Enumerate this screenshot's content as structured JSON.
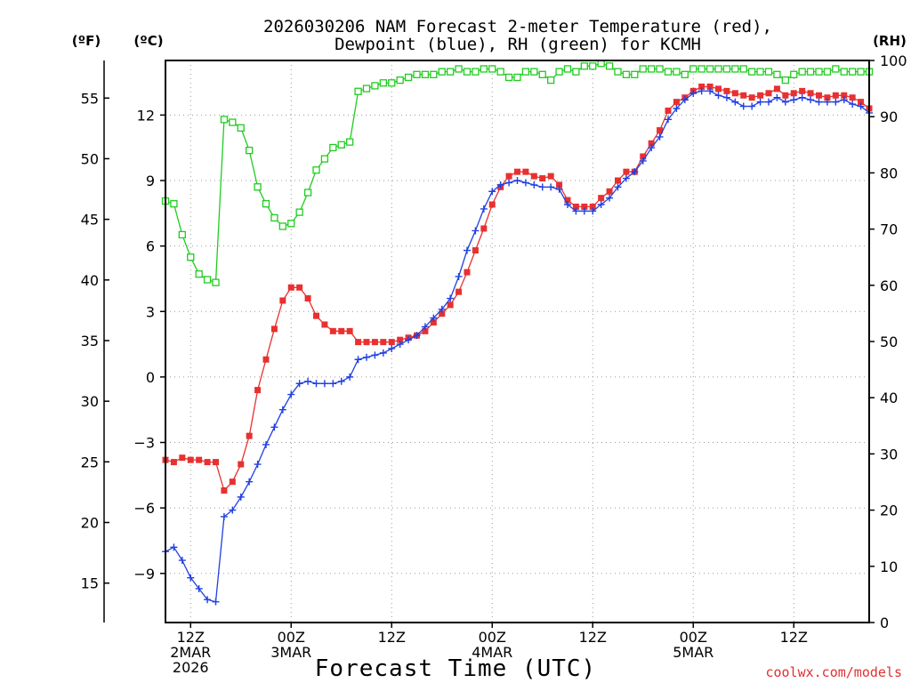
{
  "chart_data": {
    "type": "line",
    "title": "2026030206 NAM Forecast 2-meter Temperature (red),",
    "subtitle": "Dewpoint (blue), RH (green) for KCMH",
    "xlabel": "Forecast Time (UTC)",
    "credit": "coolwx.com/models",
    "units": {
      "fahrenheit": "(ºF)",
      "celsius": "(ºC)",
      "rh": "(RH)"
    },
    "x_unit": "forecast hour from 2026-03-02 06Z",
    "xlim": [
      0,
      84
    ],
    "x_ticks": [
      {
        "x": 3,
        "lines": [
          "12Z",
          "2MAR",
          "2026"
        ]
      },
      {
        "x": 15,
        "lines": [
          "00Z",
          "3MAR"
        ]
      },
      {
        "x": 27,
        "lines": [
          "12Z"
        ]
      },
      {
        "x": 39,
        "lines": [
          "00Z",
          "4MAR"
        ]
      },
      {
        "x": 51,
        "lines": [
          "12Z"
        ]
      },
      {
        "x": 63,
        "lines": [
          "00Z",
          "5MAR"
        ]
      },
      {
        "x": 75,
        "lines": [
          "12Z"
        ]
      }
    ],
    "celsius_axis": {
      "ylim": [
        -11.25,
        14.5
      ],
      "ticks": [
        "12",
        "9",
        "6",
        "3",
        "0",
        "−3",
        "−6",
        "−9"
      ],
      "tick_values": [
        12,
        9,
        6,
        3,
        0,
        -3,
        -6,
        -9
      ]
    },
    "fahrenheit_axis": {
      "ticks": [
        "55",
        "50",
        "45",
        "40",
        "35",
        "30",
        "25",
        "20",
        "15"
      ],
      "tick_values": [
        55,
        50,
        45,
        40,
        35,
        30,
        25,
        20,
        15
      ]
    },
    "rh_axis": {
      "ylim": [
        0,
        100
      ],
      "ticks": [
        "100",
        "90",
        "80",
        "70",
        "60",
        "50",
        "40",
        "30",
        "20",
        "10",
        "0"
      ],
      "tick_values": [
        100,
        90,
        80,
        70,
        60,
        50,
        40,
        30,
        20,
        10,
        0
      ]
    },
    "series": [
      {
        "name": "Temperature",
        "units": "C",
        "axis": "celsius",
        "color": "#e83030",
        "marker": "filled-square",
        "x": [
          0,
          1,
          2,
          3,
          4,
          5,
          6,
          7,
          8,
          9,
          10,
          11,
          12,
          13,
          14,
          15,
          16,
          17,
          18,
          19,
          20,
          21,
          22,
          23,
          24,
          25,
          26,
          27,
          28,
          29,
          30,
          31,
          32,
          33,
          34,
          35,
          36,
          37,
          38,
          39,
          40,
          41,
          42,
          43,
          44,
          45,
          46,
          47,
          48,
          49,
          50,
          51,
          52,
          53,
          54,
          55,
          56,
          57,
          58,
          59,
          60,
          61,
          62,
          63,
          64,
          65,
          66,
          67,
          68,
          69,
          70,
          71,
          72,
          73,
          74,
          75,
          76,
          77,
          78,
          79,
          80,
          81,
          82,
          83,
          84
        ],
        "values": [
          -3.8,
          -3.9,
          -3.7,
          -3.8,
          -3.8,
          -3.9,
          -3.9,
          -5.2,
          -4.8,
          -4.0,
          -2.7,
          -0.6,
          0.8,
          2.2,
          3.5,
          4.1,
          4.1,
          3.6,
          2.8,
          2.4,
          2.1,
          2.1,
          2.1,
          1.6,
          1.6,
          1.6,
          1.6,
          1.6,
          1.7,
          1.8,
          1.9,
          2.1,
          2.5,
          2.9,
          3.3,
          3.9,
          4.8,
          5.8,
          6.8,
          7.9,
          8.7,
          9.2,
          9.4,
          9.4,
          9.2,
          9.1,
          9.2,
          8.8,
          8.1,
          7.8,
          7.8,
          7.8,
          8.2,
          8.5,
          9.0,
          9.4,
          9.4,
          10.1,
          10.7,
          11.3,
          12.2,
          12.6,
          12.8,
          13.1,
          13.3,
          13.3,
          13.2,
          13.1,
          13.0,
          12.9,
          12.8,
          12.9,
          13.0,
          13.2,
          12.9,
          13.0,
          13.1,
          13.0,
          12.9,
          12.8,
          12.9,
          12.9,
          12.8,
          12.6,
          12.3
        ]
      },
      {
        "name": "Dewpoint",
        "units": "C",
        "axis": "celsius",
        "color": "#2040e0",
        "marker": "plus",
        "x": [
          0,
          1,
          2,
          3,
          4,
          5,
          6,
          7,
          8,
          9,
          10,
          11,
          12,
          13,
          14,
          15,
          16,
          17,
          18,
          19,
          20,
          21,
          22,
          23,
          24,
          25,
          26,
          27,
          28,
          29,
          30,
          31,
          32,
          33,
          34,
          35,
          36,
          37,
          38,
          39,
          40,
          41,
          42,
          43,
          44,
          45,
          46,
          47,
          48,
          49,
          50,
          51,
          52,
          53,
          54,
          55,
          56,
          57,
          58,
          59,
          60,
          61,
          62,
          63,
          64,
          65,
          66,
          67,
          68,
          69,
          70,
          71,
          72,
          73,
          74,
          75,
          76,
          77,
          78,
          79,
          80,
          81,
          82,
          83,
          84
        ],
        "values": [
          -8.0,
          -7.8,
          -8.4,
          -9.2,
          -9.7,
          -10.2,
          -10.3,
          -6.4,
          -6.1,
          -5.5,
          -4.8,
          -4.0,
          -3.1,
          -2.3,
          -1.5,
          -0.8,
          -0.3,
          -0.2,
          -0.3,
          -0.3,
          -0.3,
          -0.2,
          0.0,
          0.8,
          0.9,
          1.0,
          1.1,
          1.3,
          1.5,
          1.7,
          1.9,
          2.3,
          2.7,
          3.1,
          3.6,
          4.6,
          5.8,
          6.7,
          7.7,
          8.5,
          8.8,
          8.9,
          9.0,
          8.9,
          8.8,
          8.7,
          8.7,
          8.6,
          7.9,
          7.6,
          7.6,
          7.6,
          7.9,
          8.2,
          8.7,
          9.1,
          9.4,
          9.9,
          10.5,
          11.0,
          11.8,
          12.3,
          12.7,
          13.0,
          13.1,
          13.1,
          12.9,
          12.8,
          12.6,
          12.4,
          12.4,
          12.6,
          12.6,
          12.8,
          12.6,
          12.7,
          12.8,
          12.7,
          12.6,
          12.6,
          12.6,
          12.7,
          12.5,
          12.4,
          12.1
        ]
      },
      {
        "name": "Relative Humidity",
        "units": "%",
        "axis": "rh",
        "color": "#20cc20",
        "marker": "open-square",
        "x": [
          0,
          1,
          2,
          3,
          4,
          5,
          6,
          7,
          8,
          9,
          10,
          11,
          12,
          13,
          14,
          15,
          16,
          17,
          18,
          19,
          20,
          21,
          22,
          23,
          24,
          25,
          26,
          27,
          28,
          29,
          30,
          31,
          32,
          33,
          34,
          35,
          36,
          37,
          38,
          39,
          40,
          41,
          42,
          43,
          44,
          45,
          46,
          47,
          48,
          49,
          50,
          51,
          52,
          53,
          54,
          55,
          56,
          57,
          58,
          59,
          60,
          61,
          62,
          63,
          64,
          65,
          66,
          67,
          68,
          69,
          70,
          71,
          72,
          73,
          74,
          75,
          76,
          77,
          78,
          79,
          80,
          81,
          82,
          83,
          84
        ],
        "values": [
          75,
          74.5,
          69,
          65,
          62,
          61,
          60.5,
          89.5,
          89,
          88,
          84,
          77.5,
          74.5,
          72,
          70.5,
          71,
          73,
          76.5,
          80.5,
          82.5,
          84.5,
          85,
          85.5,
          94.5,
          95,
          95.5,
          96,
          96,
          96.5,
          97,
          97.5,
          97.5,
          97.5,
          98,
          98,
          98.5,
          98,
          98,
          98.5,
          98.5,
          98,
          97,
          97,
          98,
          98,
          97.5,
          96.5,
          98,
          98.5,
          98,
          99,
          99,
          99.5,
          99,
          98,
          97.5,
          97.5,
          98.5,
          98.5,
          98.5,
          98,
          98,
          97.5,
          98.5,
          98.5,
          98.5,
          98.5,
          98.5,
          98.5,
          98.5,
          98,
          98,
          98,
          97.5,
          96.5,
          97.5,
          98,
          98,
          98,
          98,
          98.5,
          98,
          98,
          98,
          98
        ]
      }
    ]
  }
}
